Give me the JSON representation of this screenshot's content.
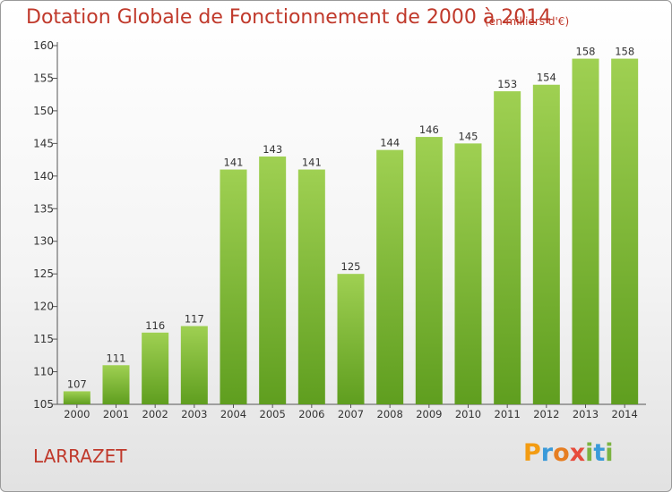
{
  "header": {
    "title": "Dotation Globale de Fonctionnement de 2000 à 2014",
    "subtitle": "(en milliers d'€)"
  },
  "commune": "LARRAZET",
  "logo": {
    "letters": [
      "P",
      "r",
      "o",
      "x",
      "i",
      "t",
      "i"
    ],
    "colors": [
      "#f39c12",
      "#3a9ad9",
      "#e67e22",
      "#e74c3c",
      "#7cb342",
      "#3a9ad9",
      "#7cb342"
    ]
  },
  "chart_data": {
    "type": "bar",
    "title": "Dotation Globale de Fonctionnement de 2000 à 2014",
    "subtitle": "(en milliers d'€)",
    "categories": [
      "2000",
      "2001",
      "2002",
      "2003",
      "2004",
      "2005",
      "2006",
      "2007",
      "2008",
      "2009",
      "2010",
      "2011",
      "2012",
      "2013",
      "2014"
    ],
    "values": [
      107,
      111,
      116,
      117,
      141,
      143,
      141,
      125,
      144,
      146,
      145,
      153,
      154,
      158,
      158
    ],
    "ylim": [
      105,
      160
    ],
    "yticks": [
      105,
      110,
      115,
      120,
      125,
      130,
      135,
      140,
      145,
      150,
      155,
      160
    ],
    "grid": false,
    "bar_color": "#7cb83a",
    "data_labels": true
  }
}
